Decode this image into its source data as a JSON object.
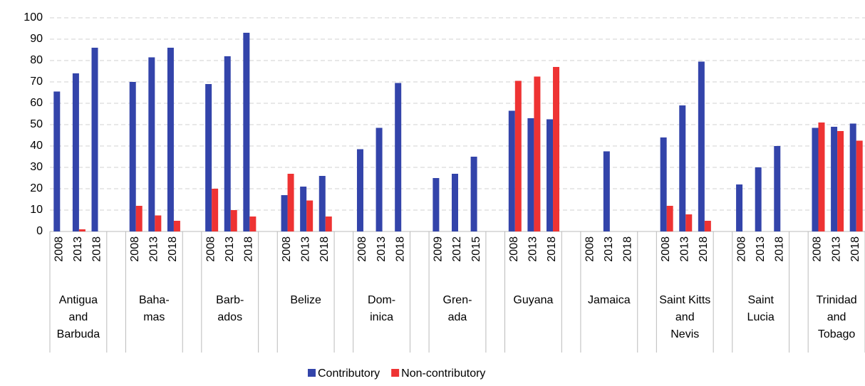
{
  "chart_data": {
    "type": "bar",
    "groups": [
      {
        "name": "Antigua\nand\nBarbuda",
        "years": [
          "2008",
          "2013",
          "2018"
        ]
      },
      {
        "name": "Baha-\nmas",
        "years": [
          "2008",
          "2013",
          "2018"
        ]
      },
      {
        "name": "Barb-\nados",
        "years": [
          "2008",
          "2013",
          "2018"
        ]
      },
      {
        "name": "Belize",
        "years": [
          "2008",
          "2013",
          "2018"
        ]
      },
      {
        "name": "Dom-\ninica",
        "years": [
          "2008",
          "2013",
          "2018"
        ]
      },
      {
        "name": "Gren-\nada",
        "years": [
          "2009",
          "2012",
          "2015"
        ]
      },
      {
        "name": "Guyana",
        "years": [
          "2008",
          "2013",
          "2018"
        ]
      },
      {
        "name": "Jamaica",
        "years": [
          "2008",
          "2013",
          "2018"
        ]
      },
      {
        "name": "Saint Kitts\nand\nNevis",
        "years": [
          "2008",
          "2013",
          "2018"
        ]
      },
      {
        "name": "Saint\nLucia",
        "years": [
          "2008",
          "2013",
          "2018"
        ]
      },
      {
        "name": "Trinidad\nand\nTobago",
        "years": [
          "2008",
          "2013",
          "2018"
        ]
      }
    ],
    "series": [
      {
        "name": "Contributory",
        "color": "#3344aa",
        "values": [
          65.5,
          74,
          86,
          70,
          81.5,
          86,
          69,
          82,
          93,
          17,
          21,
          26,
          38.5,
          48.5,
          69.5,
          25,
          27,
          35,
          56.5,
          53,
          52.5,
          null,
          37.5,
          null,
          44,
          59,
          79.5,
          22,
          30,
          40,
          48.5,
          49,
          50.5
        ]
      },
      {
        "name": "Non-contributory",
        "color": "#ee3333",
        "values": [
          null,
          1,
          null,
          12,
          7.5,
          5,
          20,
          10,
          7,
          27,
          14.5,
          7,
          null,
          null,
          null,
          null,
          null,
          null,
          70.5,
          72.5,
          77,
          null,
          null,
          null,
          12,
          8,
          5,
          null,
          null,
          null,
          51,
          47,
          42.5
        ]
      }
    ],
    "ylim": [
      0,
      100
    ],
    "yticks": [
      0,
      10,
      20,
      30,
      40,
      50,
      60,
      70,
      80,
      90,
      100
    ],
    "grid": true,
    "legend": "bottom"
  }
}
